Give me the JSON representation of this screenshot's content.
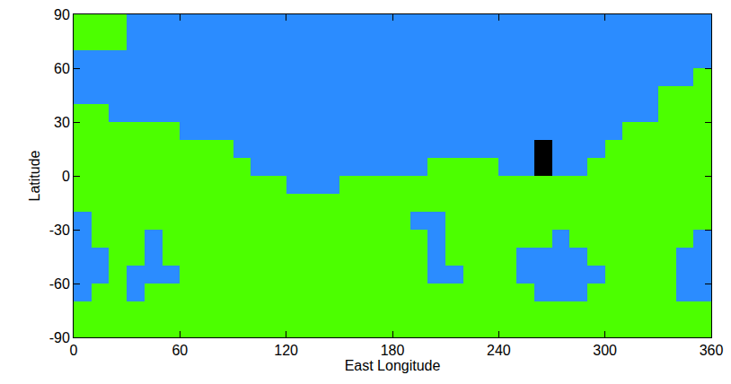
{
  "chart_data": {
    "type": "heatmap",
    "x_label": "East Longitude",
    "y_label": "Latitude",
    "xlim": [
      0,
      360
    ],
    "xticks": [
      0,
      60,
      120,
      180,
      240,
      300,
      360
    ],
    "ylim": [
      -90,
      90
    ],
    "yticks": [
      -90,
      -60,
      -30,
      0,
      30,
      60,
      90
    ],
    "grid": false,
    "colors": [
      "#4cff00",
      "#2b8cff",
      "#000000"
    ],
    "x": [
      5,
      15,
      25,
      35,
      45,
      55,
      65,
      75,
      85,
      95,
      105,
      115,
      125,
      135,
      145,
      155,
      165,
      175,
      185,
      195,
      205,
      215,
      225,
      235,
      245,
      255,
      265,
      275,
      285,
      295,
      305,
      315,
      325,
      335,
      345,
      355
    ],
    "y": [
      -85,
      -75,
      -65,
      -55,
      -45,
      -35,
      -25,
      -15,
      -5,
      5,
      15,
      25,
      35,
      45,
      55,
      65,
      75,
      85
    ],
    "z": [
      [
        0,
        0,
        0,
        0,
        0,
        0,
        0,
        0,
        0,
        0,
        0,
        0,
        0,
        0,
        0,
        0,
        0,
        0,
        0,
        0,
        0,
        0,
        0,
        0,
        0,
        0,
        0,
        0,
        0,
        0,
        0,
        0,
        0,
        0,
        0,
        0
      ],
      [
        0,
        0,
        0,
        0,
        0,
        0,
        0,
        0,
        0,
        0,
        0,
        0,
        0,
        0,
        0,
        0,
        0,
        0,
        0,
        0,
        0,
        0,
        0,
        0,
        0,
        0,
        0,
        0,
        0,
        0,
        0,
        0,
        0,
        0,
        0,
        0
      ],
      [
        1,
        0,
        0,
        1,
        0,
        0,
        0,
        0,
        0,
        0,
        0,
        0,
        0,
        0,
        0,
        0,
        0,
        0,
        0,
        0,
        0,
        0,
        0,
        0,
        0,
        0,
        1,
        1,
        1,
        0,
        0,
        0,
        0,
        0,
        1,
        1
      ],
      [
        1,
        1,
        0,
        1,
        1,
        1,
        0,
        0,
        0,
        0,
        0,
        0,
        0,
        0,
        0,
        0,
        0,
        0,
        0,
        0,
        1,
        1,
        0,
        0,
        0,
        1,
        1,
        1,
        1,
        1,
        0,
        0,
        0,
        0,
        1,
        1
      ],
      [
        1,
        1,
        0,
        0,
        1,
        0,
        0,
        0,
        0,
        0,
        0,
        0,
        0,
        0,
        0,
        0,
        0,
        0,
        0,
        0,
        1,
        0,
        0,
        0,
        0,
        1,
        1,
        1,
        1,
        0,
        0,
        0,
        0,
        0,
        1,
        1
      ],
      [
        1,
        0,
        0,
        0,
        1,
        0,
        0,
        0,
        0,
        0,
        0,
        0,
        0,
        0,
        0,
        0,
        0,
        0,
        0,
        0,
        1,
        0,
        0,
        0,
        0,
        0,
        0,
        1,
        0,
        0,
        0,
        0,
        0,
        0,
        0,
        1
      ],
      [
        1,
        0,
        0,
        0,
        0,
        0,
        0,
        0,
        0,
        0,
        0,
        0,
        0,
        0,
        0,
        0,
        0,
        0,
        0,
        1,
        1,
        0,
        0,
        0,
        0,
        0,
        0,
        0,
        0,
        0,
        0,
        0,
        0,
        0,
        0,
        0
      ],
      [
        0,
        0,
        0,
        0,
        0,
        0,
        0,
        0,
        0,
        0,
        0,
        0,
        0,
        0,
        0,
        0,
        0,
        0,
        0,
        0,
        0,
        0,
        0,
        0,
        0,
        0,
        0,
        0,
        0,
        0,
        0,
        0,
        0,
        0,
        0,
        0
      ],
      [
        0,
        0,
        0,
        0,
        0,
        0,
        0,
        0,
        0,
        0,
        0,
        0,
        1,
        1,
        1,
        0,
        0,
        0,
        0,
        0,
        0,
        0,
        0,
        0,
        0,
        0,
        0,
        0,
        0,
        0,
        0,
        0,
        0,
        0,
        0,
        0
      ],
      [
        0,
        0,
        0,
        0,
        0,
        0,
        0,
        0,
        0,
        0,
        1,
        1,
        1,
        1,
        1,
        1,
        1,
        1,
        1,
        1,
        0,
        0,
        0,
        0,
        1,
        1,
        2,
        1,
        1,
        0,
        0,
        0,
        0,
        0,
        0,
        0
      ],
      [
        0,
        0,
        0,
        0,
        0,
        0,
        0,
        0,
        0,
        1,
        1,
        1,
        1,
        1,
        1,
        1,
        1,
        1,
        1,
        1,
        1,
        1,
        1,
        1,
        1,
        1,
        2,
        1,
        1,
        1,
        0,
        0,
        0,
        0,
        0,
        0
      ],
      [
        0,
        0,
        0,
        0,
        0,
        0,
        1,
        1,
        1,
        1,
        1,
        1,
        1,
        1,
        1,
        1,
        1,
        1,
        1,
        1,
        1,
        1,
        1,
        1,
        1,
        1,
        1,
        1,
        1,
        1,
        1,
        0,
        0,
        0,
        0,
        0
      ],
      [
        0,
        0,
        1,
        1,
        1,
        1,
        1,
        1,
        1,
        1,
        1,
        1,
        1,
        1,
        1,
        1,
        1,
        1,
        1,
        1,
        1,
        1,
        1,
        1,
        1,
        1,
        1,
        1,
        1,
        1,
        1,
        1,
        1,
        0,
        0,
        0
      ],
      [
        1,
        1,
        1,
        1,
        1,
        1,
        1,
        1,
        1,
        1,
        1,
        1,
        1,
        1,
        1,
        1,
        1,
        1,
        1,
        1,
        1,
        1,
        1,
        1,
        1,
        1,
        1,
        1,
        1,
        1,
        1,
        1,
        1,
        0,
        0,
        0
      ],
      [
        1,
        1,
        1,
        1,
        1,
        1,
        1,
        1,
        1,
        1,
        1,
        1,
        1,
        1,
        1,
        1,
        1,
        1,
        1,
        1,
        1,
        1,
        1,
        1,
        1,
        1,
        1,
        1,
        1,
        1,
        1,
        1,
        1,
        1,
        1,
        0
      ],
      [
        1,
        1,
        1,
        1,
        1,
        1,
        1,
        1,
        1,
        1,
        1,
        1,
        1,
        1,
        1,
        1,
        1,
        1,
        1,
        1,
        1,
        1,
        1,
        1,
        1,
        1,
        1,
        1,
        1,
        1,
        1,
        1,
        1,
        1,
        1,
        1
      ],
      [
        0,
        0,
        0,
        1,
        1,
        1,
        1,
        1,
        1,
        1,
        1,
        1,
        1,
        1,
        1,
        1,
        1,
        1,
        1,
        1,
        1,
        1,
        1,
        1,
        1,
        1,
        1,
        1,
        1,
        1,
        1,
        1,
        1,
        1,
        1,
        1
      ],
      [
        0,
        0,
        0,
        1,
        1,
        1,
        1,
        1,
        1,
        1,
        1,
        1,
        1,
        1,
        1,
        1,
        1,
        1,
        1,
        1,
        1,
        1,
        1,
        1,
        1,
        1,
        1,
        1,
        1,
        1,
        1,
        1,
        1,
        1,
        1,
        1
      ]
    ]
  }
}
